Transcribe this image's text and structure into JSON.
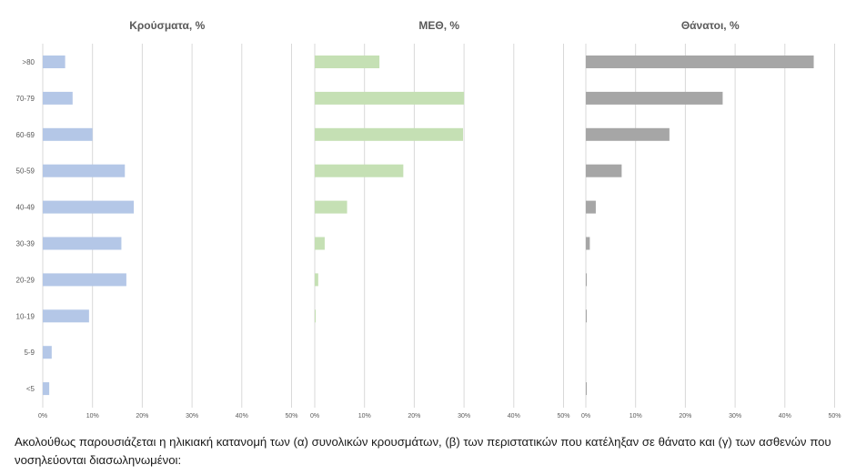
{
  "chart_data": {
    "type": "bar",
    "orientation": "horizontal",
    "categories": [
      ">80",
      "70-79",
      "60-69",
      "50-59",
      "40-49",
      "30-39",
      "20-29",
      "10-19",
      "5-9",
      "<5"
    ],
    "xticks": [
      "0%",
      "10%",
      "20%",
      "30%",
      "40%",
      "50%"
    ],
    "xlim": [
      0,
      50
    ],
    "grid": true,
    "panels": [
      {
        "title": "Κρούσματα, %",
        "color": "#b4c7e7",
        "values": [
          4.5,
          6.0,
          10.0,
          16.5,
          18.3,
          15.8,
          16.8,
          9.3,
          1.8,
          1.3
        ]
      },
      {
        "title": "ΜΕΘ, %",
        "color": "#c5e0b4",
        "values": [
          13.0,
          30.0,
          29.8,
          17.8,
          6.5,
          2.0,
          0.7,
          0.2,
          0,
          0
        ]
      },
      {
        "title": "Θάνατοι, %",
        "color": "#a6a6a6",
        "values": [
          45.8,
          27.5,
          16.8,
          7.2,
          2.0,
          0.8,
          0.1,
          0.1,
          0,
          0.1
        ]
      }
    ]
  },
  "caption": "Ακολούθως παρουσιάζεται η ηλικιακή κατανομή των (α) συνολικών κρουσμάτων, (β) των περιστατικών που κατέληξαν σε θάνατο και (γ) των ασθενών που νοσηλεύονται διασωληνωμένοι:"
}
